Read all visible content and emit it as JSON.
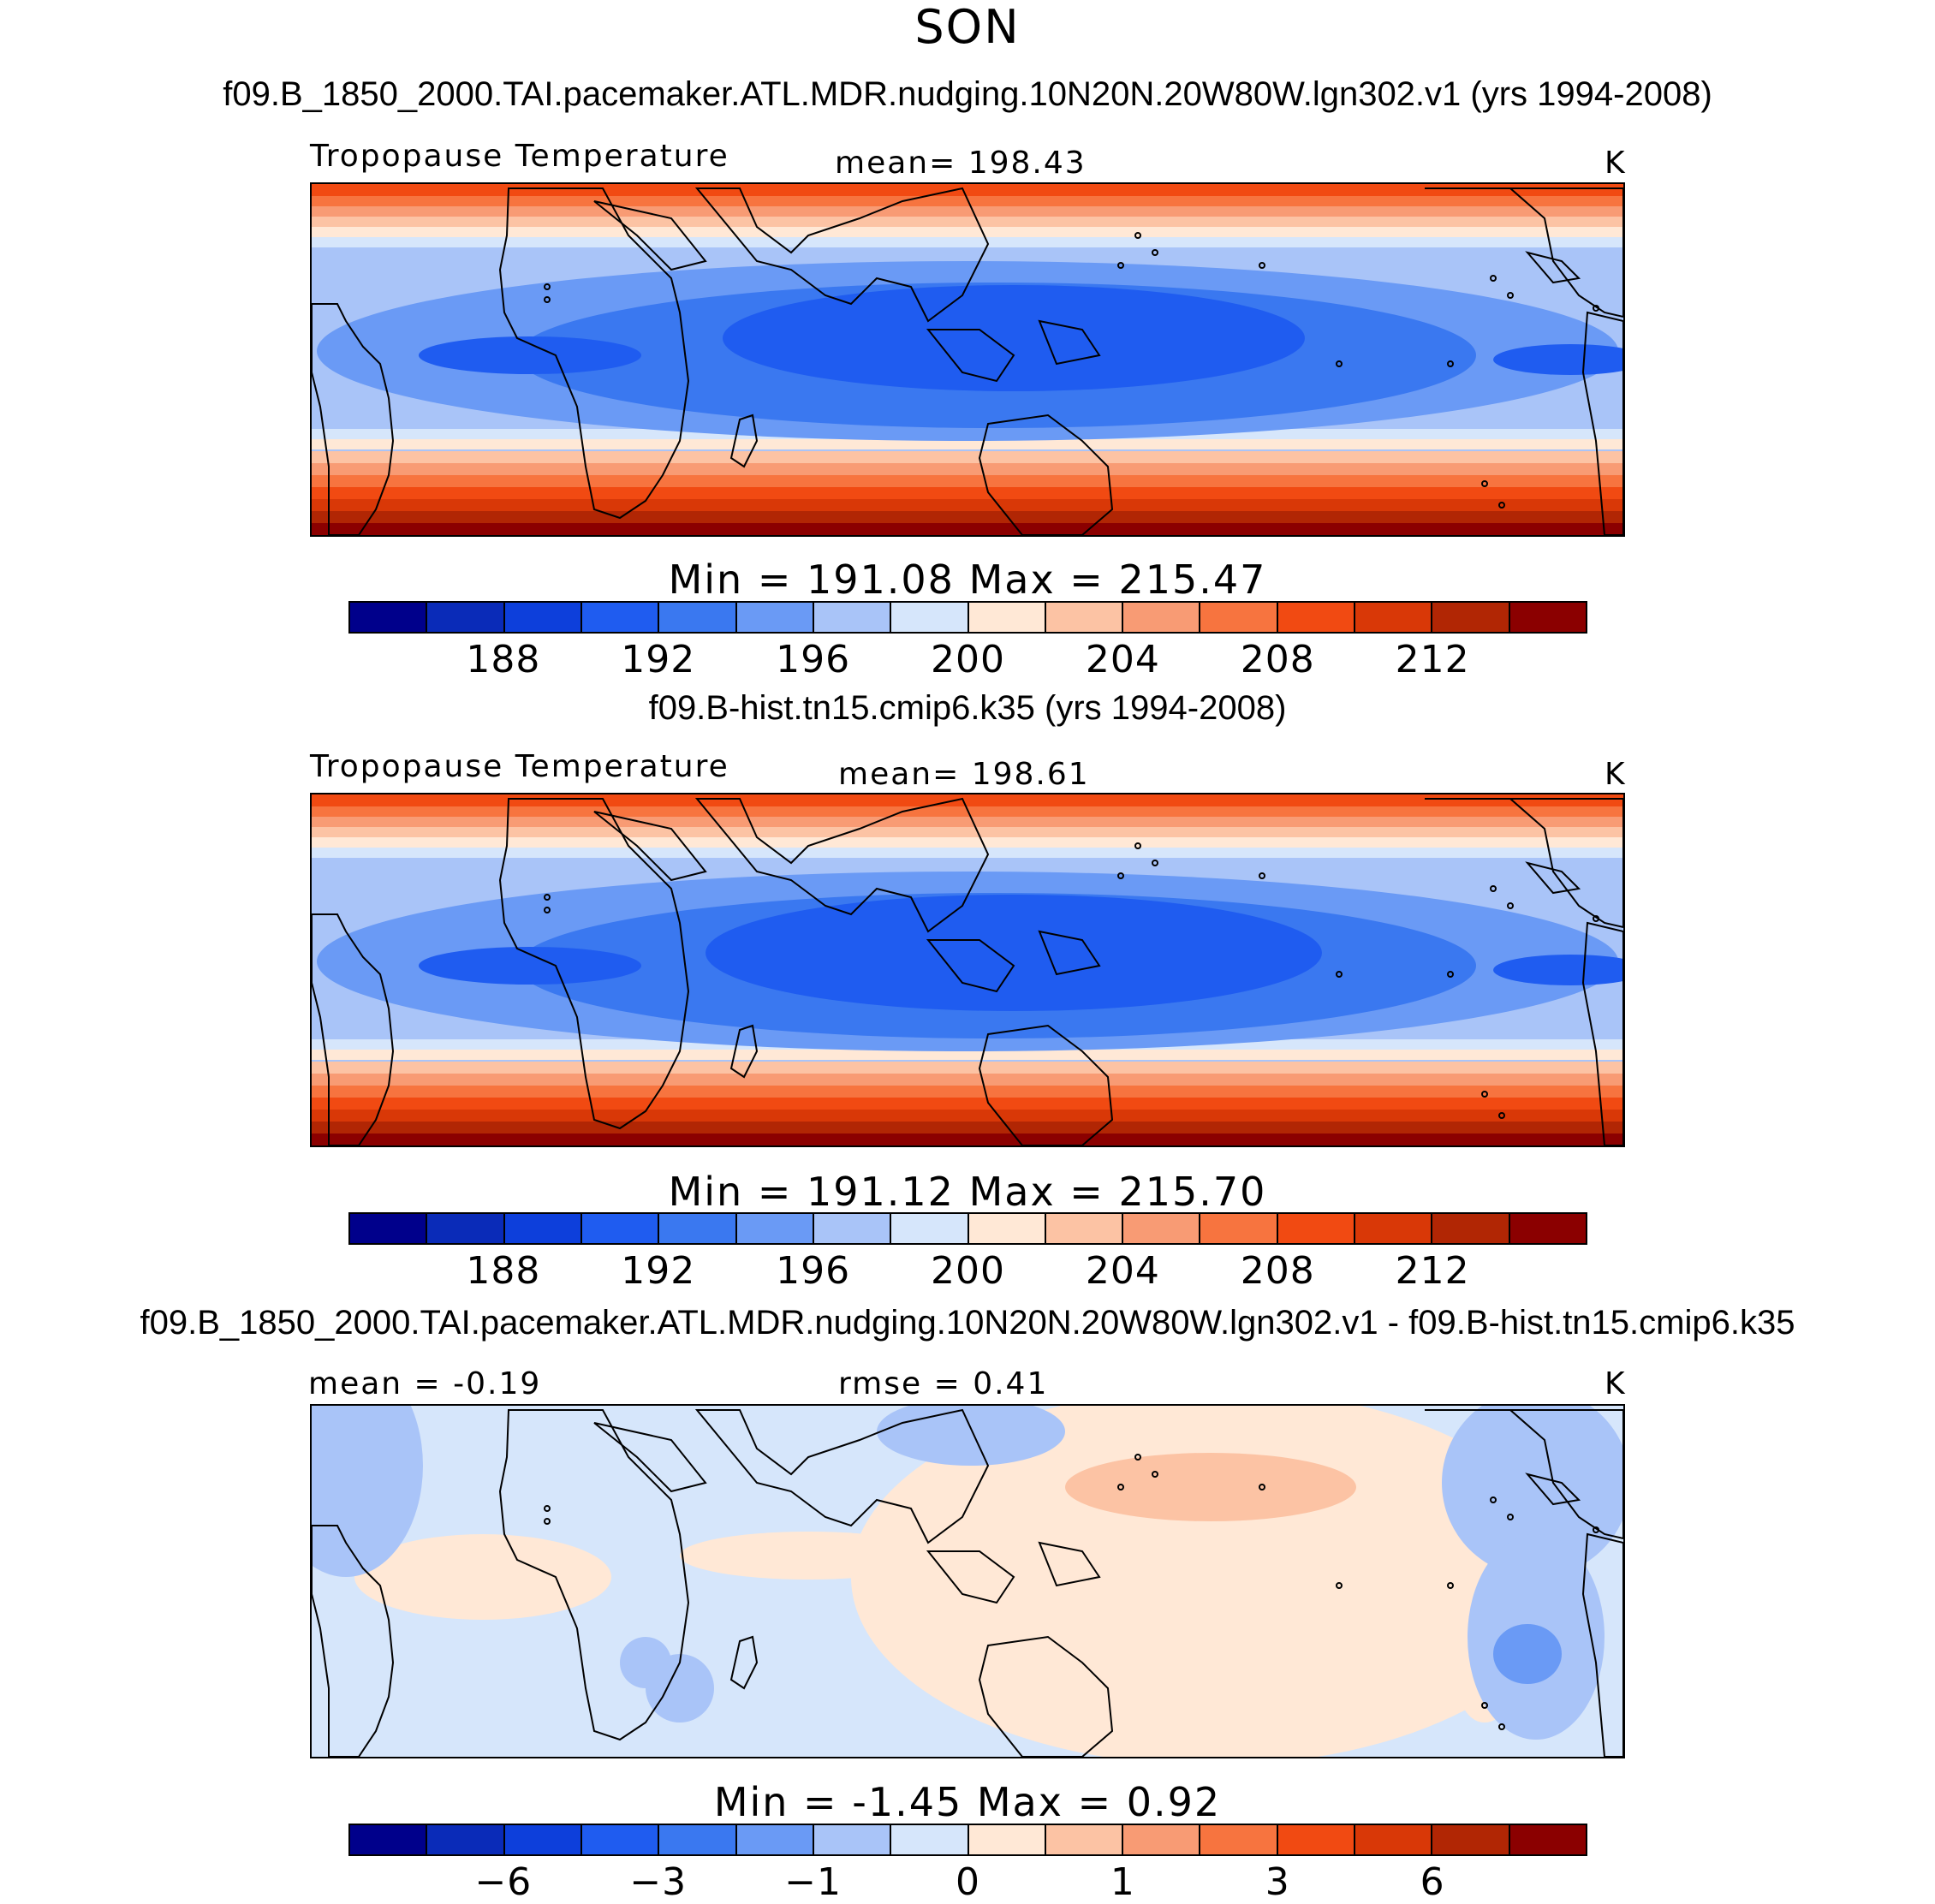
{
  "season": "SON",
  "colors": [
    "#00008b",
    "#0a2bb8",
    "#0d3fdb",
    "#1f5cf0",
    "#3a78f0",
    "#6a9af5",
    "#a9c4f8",
    "#d6e6fb",
    "#ffe8d6",
    "#fcc3a4",
    "#f89b74",
    "#f7743f",
    "#f14a12",
    "#d93807",
    "#b12604",
    "#8b0000"
  ],
  "continent_color": "#000000",
  "panels": [
    {
      "name": "panel-pacemaker",
      "run_title": "f09.B_1850_2000.TAI.pacemaker.ATL.MDR.nudging.10N20N.20W80W.lgn302.v1 (yrs 1994-2008)",
      "left_label": "Tropopause Temperature",
      "center_label": "mean= 198.43",
      "units": "K",
      "stats": "Min = 191.08 Max = 215.47",
      "ticks": [
        "188",
        "192",
        "196",
        "200",
        "204",
        "208",
        "212"
      ],
      "field": "clim"
    },
    {
      "name": "panel-hist",
      "run_title": "f09.B-hist.tn15.cmip6.k35 (yrs 1994-2008)",
      "left_label": "Tropopause Temperature",
      "center_label": "mean= 198.61",
      "units": "K",
      "stats": "Min = 191.12 Max = 215.70",
      "ticks": [
        "188",
        "192",
        "196",
        "200",
        "204",
        "208",
        "212"
      ],
      "field": "clim"
    },
    {
      "name": "panel-diff",
      "run_title": "f09.B_1850_2000.TAI.pacemaker.ATL.MDR.nudging.10N20N.20W80W.lgn302.v1 - f09.B-hist.tn15.cmip6.k35",
      "left_label": "mean = -0.19",
      "center_label": "rmse = 0.41",
      "units": "K",
      "stats": "Min = -1.45 Max = 0.92",
      "ticks": [
        "-6",
        "-3",
        "-1",
        "0",
        "1",
        "3",
        "6"
      ],
      "field": "diff"
    }
  ]
}
